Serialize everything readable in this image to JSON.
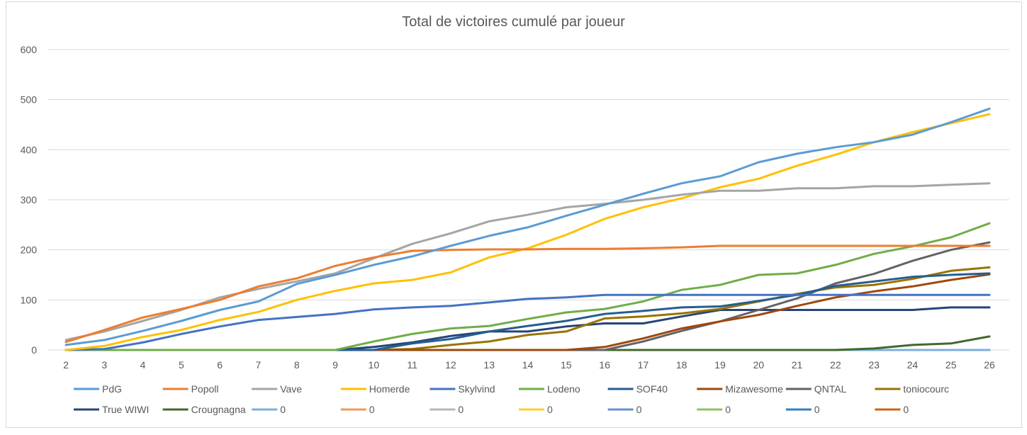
{
  "chart_data": {
    "type": "line",
    "title": "Total de victoires cumulé par joueur",
    "x": [
      "2",
      "3",
      "4",
      "5",
      "6",
      "7",
      "8",
      "9",
      "10",
      "11",
      "12",
      "13",
      "14",
      "15",
      "16",
      "17",
      "18",
      "19",
      "20",
      "21",
      "22",
      "23",
      "24",
      "25",
      "26"
    ],
    "ylim": [
      0,
      600
    ],
    "yticks": [
      0,
      100,
      200,
      300,
      400,
      500,
      600
    ],
    "grid": true,
    "legend_position": "bottom",
    "series": [
      {
        "name": "PdG",
        "color": "#5B9BD5",
        "values": [
          10,
          20,
          38,
          58,
          80,
          97,
          132,
          150,
          170,
          187,
          208,
          228,
          245,
          268,
          290,
          312,
          333,
          347,
          375,
          392,
          405,
          415,
          430,
          455,
          482
        ]
      },
      {
        "name": "Popoll",
        "color": "#ED7D31",
        "values": [
          16,
          40,
          65,
          82,
          100,
          127,
          143,
          168,
          185,
          198,
          200,
          201,
          201,
          202,
          202,
          203,
          205,
          208,
          208,
          208,
          208,
          208,
          208,
          208,
          208
        ]
      },
      {
        "name": "Vave",
        "color": "#A5A5A5",
        "values": [
          20,
          37,
          58,
          80,
          105,
          122,
          137,
          153,
          183,
          212,
          233,
          257,
          270,
          285,
          292,
          300,
          310,
          318,
          318,
          323,
          323,
          327,
          327,
          330,
          333
        ]
      },
      {
        "name": "Homerde",
        "color": "#FFC000",
        "values": [
          0,
          8,
          26,
          40,
          60,
          76,
          100,
          118,
          133,
          140,
          155,
          185,
          203,
          230,
          262,
          285,
          303,
          325,
          342,
          368,
          390,
          415,
          435,
          453,
          471
        ]
      },
      {
        "name": "Skylvind",
        "color": "#4472C4",
        "values": [
          0,
          2,
          15,
          32,
          47,
          60,
          66,
          72,
          81,
          85,
          88,
          95,
          102,
          105,
          110,
          110,
          110,
          110,
          110,
          110,
          110,
          110,
          110,
          110,
          110
        ]
      },
      {
        "name": "Lodeno",
        "color": "#70AD47",
        "values": [
          0,
          0,
          0,
          0,
          0,
          0,
          0,
          0,
          17,
          32,
          43,
          48,
          62,
          75,
          82,
          97,
          120,
          130,
          150,
          153,
          170,
          192,
          207,
          225,
          253
        ]
      },
      {
        "name": "SOF40",
        "color": "#255E91",
        "values": [
          0,
          0,
          0,
          0,
          0,
          0,
          0,
          0,
          0,
          13,
          22,
          37,
          48,
          58,
          72,
          78,
          85,
          87,
          98,
          110,
          128,
          137,
          146,
          150,
          153
        ]
      },
      {
        "name": "Mizawesome",
        "color": "#9E480E",
        "values": [
          0,
          0,
          0,
          0,
          0,
          0,
          0,
          0,
          0,
          0,
          0,
          0,
          0,
          0,
          6,
          23,
          43,
          57,
          70,
          88,
          105,
          117,
          127,
          140,
          151
        ]
      },
      {
        "name": "QNTAL",
        "color": "#636363",
        "values": [
          0,
          0,
          0,
          0,
          0,
          0,
          0,
          0,
          0,
          0,
          0,
          0,
          0,
          0,
          0,
          17,
          38,
          57,
          80,
          103,
          133,
          152,
          178,
          200,
          215
        ]
      },
      {
        "name": "toniocourc",
        "color": "#997300",
        "values": [
          0,
          0,
          0,
          0,
          0,
          0,
          0,
          0,
          0,
          2,
          10,
          17,
          30,
          37,
          63,
          67,
          73,
          82,
          97,
          112,
          125,
          130,
          142,
          158,
          165
        ]
      },
      {
        "name": "True WIWI",
        "color": "#264478",
        "values": [
          0,
          0,
          0,
          0,
          0,
          0,
          0,
          0,
          6,
          15,
          28,
          37,
          37,
          47,
          53,
          53,
          67,
          80,
          80,
          80,
          80,
          80,
          80,
          85,
          85
        ]
      },
      {
        "name": "Crougnagna",
        "color": "#43682B",
        "values": [
          0,
          0,
          0,
          0,
          0,
          0,
          0,
          0,
          0,
          0,
          0,
          0,
          0,
          0,
          0,
          0,
          0,
          0,
          0,
          0,
          0,
          3,
          10,
          13,
          27
        ]
      },
      {
        "name": "0",
        "color": "#7CAFDD",
        "values": [
          0,
          0,
          0,
          0,
          0,
          0,
          0,
          0,
          0,
          0,
          0,
          0,
          0,
          0,
          0,
          0,
          0,
          0,
          0,
          0,
          0,
          0,
          0,
          0,
          0
        ]
      },
      {
        "name": "0",
        "color": "#F1975A",
        "values": [
          0,
          0,
          0,
          0,
          0,
          0,
          0,
          0,
          0,
          0,
          0,
          0,
          0,
          0,
          0,
          0,
          0,
          0,
          0,
          0,
          0,
          0,
          0,
          0,
          0
        ]
      },
      {
        "name": "0",
        "color": "#B7B7B7",
        "values": [
          0,
          0,
          0,
          0,
          0,
          0,
          0,
          0,
          0,
          0,
          0,
          0,
          0,
          0,
          0,
          0,
          0,
          0,
          0,
          0,
          0,
          0,
          0,
          0,
          0
        ]
      },
      {
        "name": "0",
        "color": "#FFCD33",
        "values": [
          0,
          0,
          0,
          0,
          0,
          0,
          0,
          0,
          0,
          0,
          0,
          0,
          0,
          0,
          0,
          0,
          0,
          0,
          0,
          0,
          0,
          0,
          0,
          0,
          0
        ]
      },
      {
        "name": "0",
        "color": "#698ED0",
        "values": [
          0,
          0,
          0,
          0,
          0,
          0,
          0,
          0,
          0,
          0,
          0,
          0,
          0,
          0,
          0,
          0,
          0,
          0,
          0,
          0,
          0,
          0,
          0,
          0,
          0
        ]
      },
      {
        "name": "0",
        "color": "#8CC168",
        "values": [
          0,
          0,
          0,
          0,
          0,
          0,
          0,
          0,
          0,
          0,
          0,
          0,
          0,
          0,
          0,
          0,
          0,
          0,
          0,
          0,
          0,
          0,
          0,
          0,
          0
        ]
      },
      {
        "name": "0",
        "color": "#327DC2",
        "values": [
          0,
          0,
          0,
          0,
          0,
          0,
          0,
          0,
          0,
          0,
          0,
          0,
          0,
          0,
          0,
          0,
          0,
          0,
          0,
          0,
          0,
          0,
          0,
          0,
          0
        ]
      },
      {
        "name": "0",
        "color": "#D26012",
        "values": [
          0,
          0,
          0,
          0,
          0,
          0,
          0,
          0,
          0,
          0,
          0,
          0,
          0,
          0,
          0,
          0,
          0,
          0,
          0,
          0,
          0,
          0,
          0,
          0,
          0
        ]
      }
    ]
  }
}
